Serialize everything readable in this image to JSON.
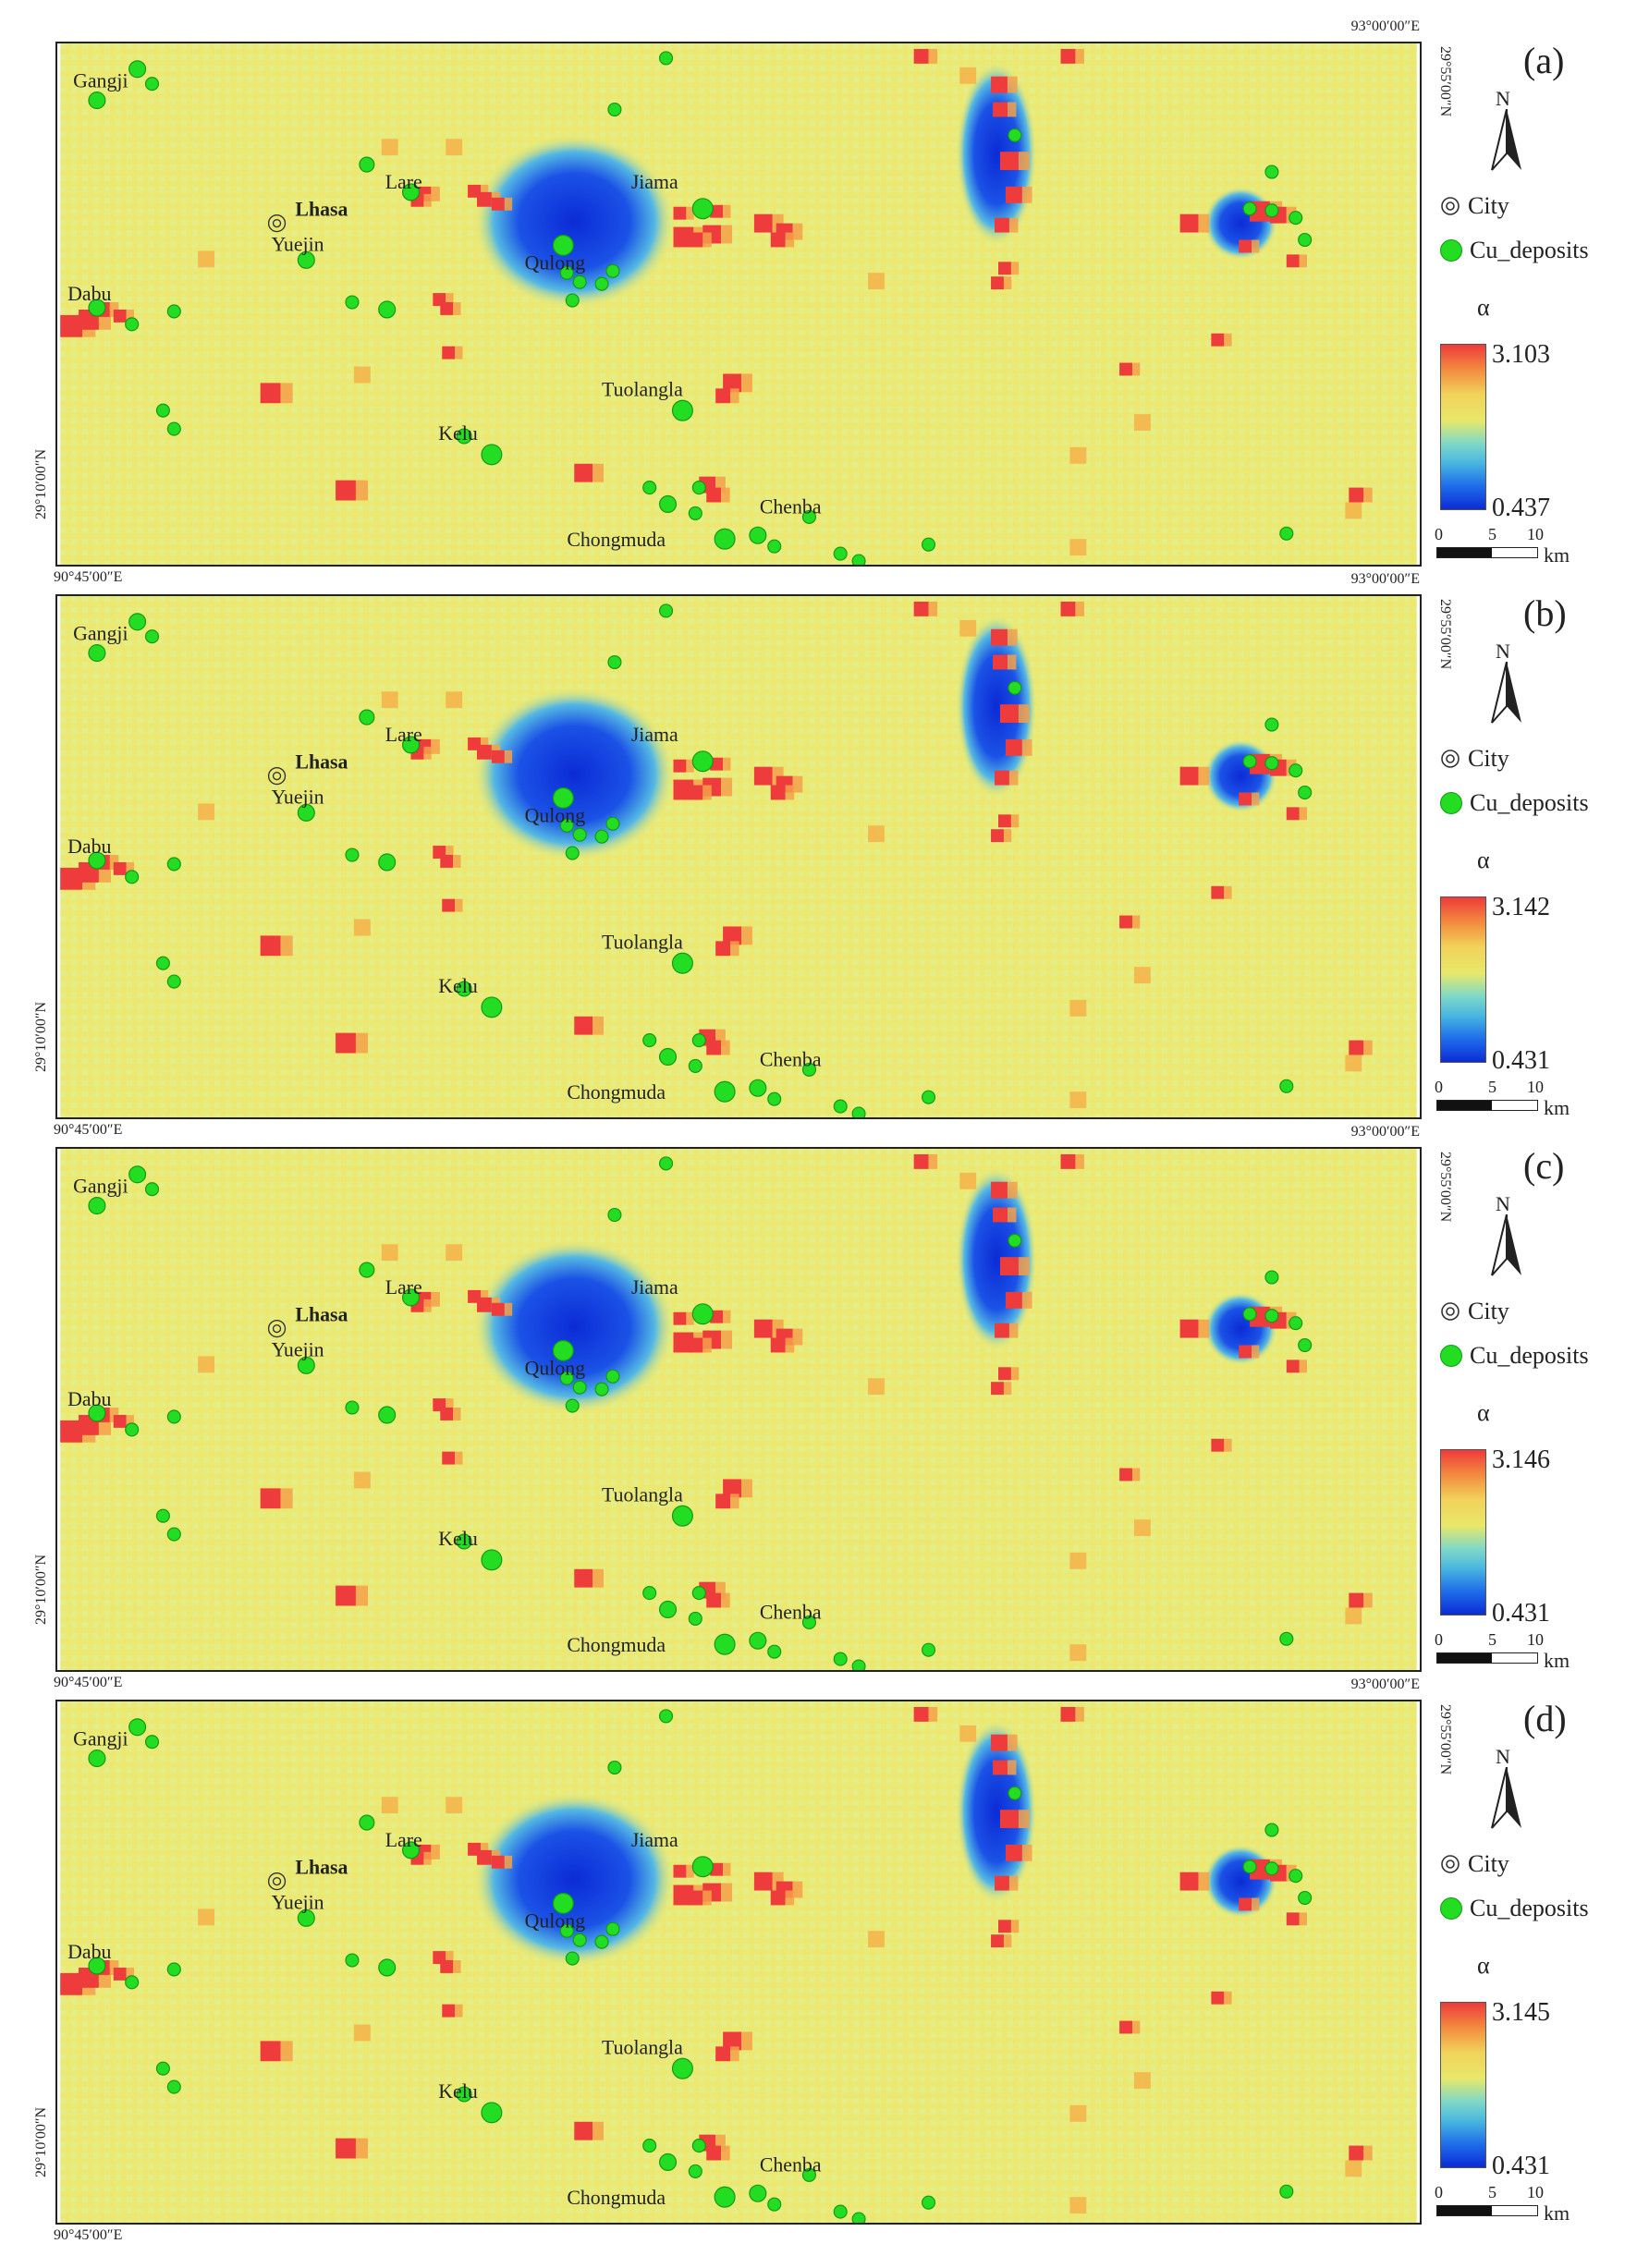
{
  "panels": [
    {
      "label": "(a)",
      "alpha_max": "3.103",
      "alpha_min": "0.437"
    },
    {
      "label": "(b)",
      "alpha_max": "3.142",
      "alpha_min": "0.431"
    },
    {
      "label": "(c)",
      "alpha_max": "3.146",
      "alpha_min": "0.431"
    },
    {
      "label": "(d)",
      "alpha_max": "3.145",
      "alpha_min": "0.431"
    }
  ],
  "coords": {
    "lon_left": "90°45′00″E",
    "lon_right": "93°00′00″E",
    "lat_top": "29°55′00″N",
    "lat_bottom": "29°10′00″N"
  },
  "legend": {
    "north": "N",
    "city": "City",
    "deposits": "Cu_deposits",
    "alpha": "α",
    "scale_ticks": [
      "0",
      "5",
      "10"
    ],
    "scale_unit": "km"
  },
  "places": {
    "gangji": "Gangji",
    "lare": "Lare",
    "lhasa": "Lhasa",
    "yuejin": "Yuejin",
    "jiama": "Jiama",
    "qulong": "Qulong",
    "dabu": "Dabu",
    "tuolangla": "Tuolangla",
    "kelu": "Kelu",
    "chenba": "Chenba",
    "chongmuda": "Chongmuda"
  },
  "colors": {
    "high": "#ee3b3b",
    "mid": "#ecec73",
    "low": "#0b2bd6",
    "deposit": "#22dd22"
  }
}
